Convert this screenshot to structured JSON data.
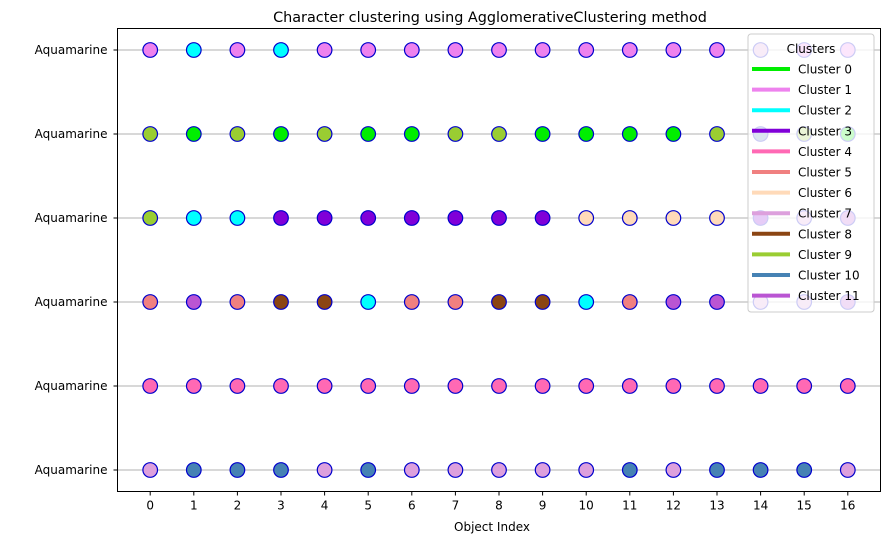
{
  "chart_data": {
    "type": "scatter",
    "title": "Character clustering using AgglomerativeClustering method",
    "xlabel": "Object Index",
    "ylabel": "",
    "x_ticks": [
      0,
      1,
      2,
      3,
      4,
      5,
      6,
      7,
      8,
      9,
      10,
      11,
      12,
      13,
      14,
      15,
      16
    ],
    "xlim": [
      -0.75,
      16.75
    ],
    "y_tick_labels": [
      "Aquamarine",
      "Aquamarine",
      "Aquamarine",
      "Aquamarine",
      "Aquamarine",
      "Aquamarine"
    ],
    "grid": "horizontal",
    "marker_edge_color": "#0000cc",
    "legend": {
      "title": "Clusters",
      "placement": "top-right",
      "entries": [
        {
          "name": "Cluster 0",
          "color": "#00ee00"
        },
        {
          "name": "Cluster 1",
          "color": "#ee82ee"
        },
        {
          "name": "Cluster 2",
          "color": "#00ffff"
        },
        {
          "name": "Cluster 3",
          "color": "#8000d8"
        },
        {
          "name": "Cluster 4",
          "color": "#ff69b4"
        },
        {
          "name": "Cluster 5",
          "color": "#f08080"
        },
        {
          "name": "Cluster 6",
          "color": "#ffdab9"
        },
        {
          "name": "Cluster 7",
          "color": "#dda0dd"
        },
        {
          "name": "Cluster 8",
          "color": "#8b4513"
        },
        {
          "name": "Cluster 9",
          "color": "#9acd32"
        },
        {
          "name": "Cluster 10",
          "color": "#4682b4"
        },
        {
          "name": "Cluster 11",
          "color": "#ba55d3"
        }
      ]
    },
    "rows": [
      {
        "row": 0,
        "clusters": [
          1,
          2,
          1,
          2,
          1,
          1,
          1,
          1,
          1,
          1,
          1,
          1,
          1,
          1,
          7,
          1,
          1
        ]
      },
      {
        "row": 1,
        "clusters": [
          9,
          0,
          9,
          0,
          9,
          0,
          0,
          9,
          9,
          0,
          0,
          0,
          0,
          9,
          10,
          9,
          0
        ]
      },
      {
        "row": 2,
        "clusters": [
          9,
          2,
          2,
          3,
          3,
          3,
          3,
          3,
          3,
          3,
          6,
          6,
          6,
          6,
          3,
          7,
          11
        ]
      },
      {
        "row": 3,
        "clusters": [
          5,
          11,
          5,
          8,
          8,
          2,
          5,
          5,
          8,
          8,
          2,
          5,
          11,
          11,
          7,
          7,
          11
        ]
      },
      {
        "row": 4,
        "clusters": [
          4,
          4,
          4,
          4,
          4,
          4,
          4,
          4,
          4,
          4,
          4,
          4,
          4,
          4,
          4,
          4,
          4
        ]
      },
      {
        "row": 5,
        "clusters": [
          7,
          10,
          10,
          10,
          7,
          10,
          7,
          7,
          7,
          7,
          7,
          10,
          7,
          10,
          10,
          10,
          7
        ]
      }
    ]
  }
}
